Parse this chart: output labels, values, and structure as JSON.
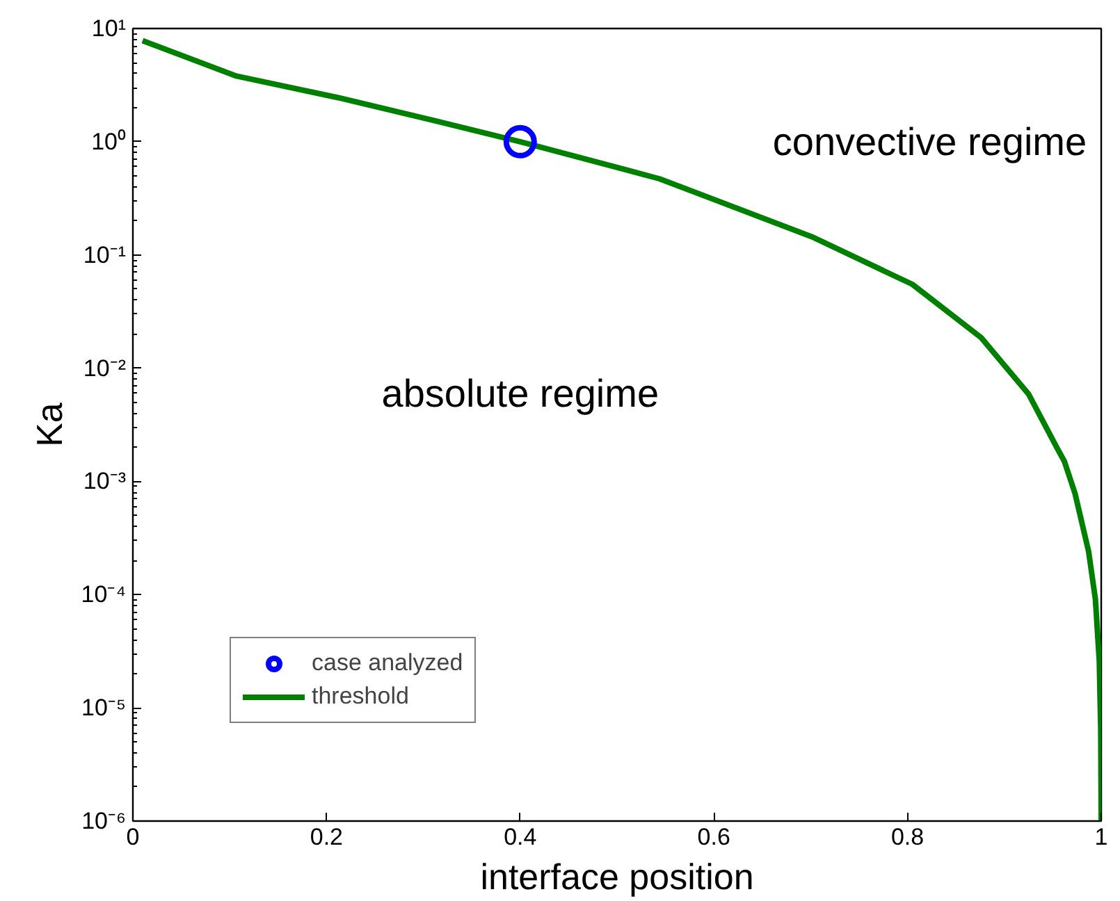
{
  "chart_data": {
    "type": "line",
    "xlabel": "interface position",
    "ylabel": "Ka",
    "log": "y",
    "xlim": [
      0,
      1
    ],
    "ylim": [
      1e-06,
      10
    ],
    "xticks": [
      0,
      0.2,
      0.4,
      0.6,
      0.8,
      1
    ],
    "yticks": [
      {
        "value": 1e-06,
        "label": "10⁻⁶"
      },
      {
        "value": 1e-05,
        "label": "10⁻⁵"
      },
      {
        "value": 0.0001,
        "label": "10⁻⁴"
      },
      {
        "value": 0.001,
        "label": "10⁻³"
      },
      {
        "value": 0.01,
        "label": "10⁻²"
      },
      {
        "value": 0.1,
        "label": "10⁻¹"
      },
      {
        "value": 1,
        "label": "10⁰"
      },
      {
        "value": 10,
        "label": "10¹"
      }
    ],
    "grid": false,
    "legend": "bottom left",
    "annotations": [
      "convective regime",
      "absolute regime"
    ],
    "series": [
      {
        "name": "case analyzed",
        "type": "scatter",
        "marker": "circle",
        "color": "#0000ff",
        "x": [
          0.4
        ],
        "values": [
          1
        ]
      },
      {
        "name": "threshold",
        "line_style": "solid",
        "color": "#008000",
        "x": [
          0.01,
          0.107,
          0.212,
          0.311,
          0.4,
          0.511,
          0.544,
          0.701,
          0.805,
          0.876,
          0.925,
          0.954,
          0.962,
          0.973,
          0.987,
          0.994,
          0.998,
          0.9995,
          1.0
        ],
        "values": [
          7.8,
          3.8,
          2.45,
          1.54,
          1.0,
          0.56,
          0.47,
          0.145,
          0.055,
          0.0186,
          0.0059,
          0.002,
          0.0015,
          0.00078,
          0.00024,
          9.1e-05,
          2.6e-05,
          6.3e-06,
          1e-06
        ]
      }
    ]
  }
}
